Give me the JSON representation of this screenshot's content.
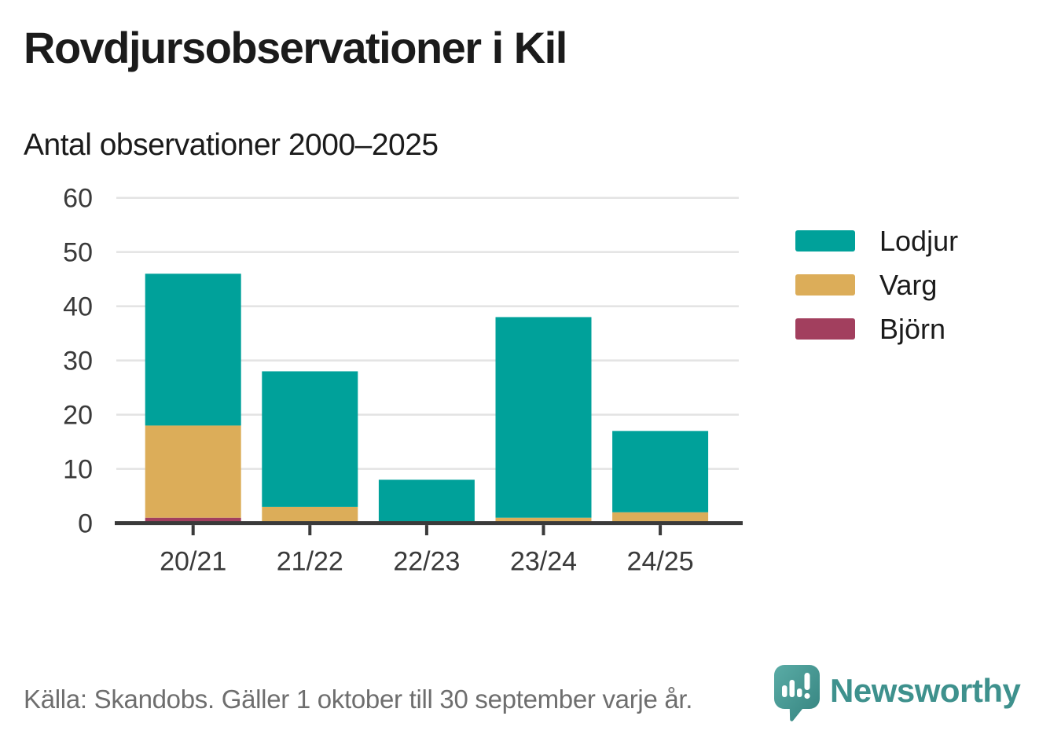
{
  "title": "Rovdjursobservationer i Kil",
  "subtitle": "Antal observationer 2000–2025",
  "chart_data": {
    "type": "bar",
    "stacked": true,
    "title": "Rovdjursobservationer i Kil",
    "subtitle": "Antal observationer 2000–2025",
    "categories": [
      "20/21",
      "21/22",
      "22/23",
      "23/24",
      "24/25"
    ],
    "series": [
      {
        "name": "Lodjur",
        "color": "#00a19a",
        "values": [
          28,
          25,
          8,
          37,
          15
        ]
      },
      {
        "name": "Varg",
        "color": "#dcad59",
        "values": [
          17,
          3,
          0,
          1,
          2
        ]
      },
      {
        "name": "Björn",
        "color": "#a23f5e",
        "values": [
          1,
          0,
          0,
          0,
          0
        ]
      }
    ],
    "stack_order_bottom_to_top": [
      "Björn",
      "Varg",
      "Lodjur"
    ],
    "totals": [
      46,
      28,
      8,
      38,
      17
    ],
    "xlabel": "",
    "ylabel": "",
    "ylim": [
      0,
      60
    ],
    "yticks": [
      0,
      10,
      20,
      30,
      40,
      50,
      60
    ],
    "grid": "horizontal",
    "legend_position": "right"
  },
  "footer": {
    "source": "Källa: Skandobs. Gäller 1 oktober till 30 september varje år.",
    "brand": "Newsworthy",
    "brand_icon": "newsworthy-speech-bubble-barchart-icon"
  },
  "colors": {
    "axis": "#3a3a3a",
    "grid": "#e3e3e3",
    "tick_text": "#3a3a3a",
    "title_text": "#1b1b1b",
    "footer_text": "#6e6e6e",
    "brand_teal": "#3e918d",
    "brand_icon_light": "#5aaca6",
    "brand_icon_dark": "#35837f"
  }
}
